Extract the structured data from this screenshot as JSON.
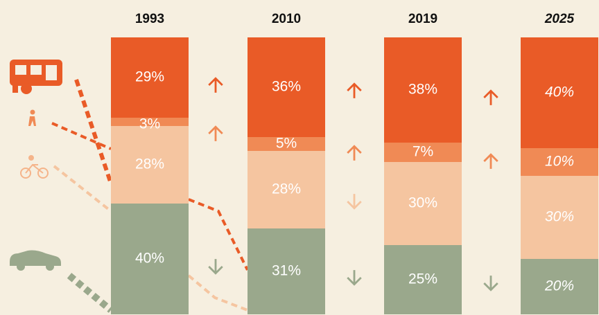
{
  "chart_data": {
    "type": "stacked_bar",
    "categories": [
      "1993",
      "2010",
      "2019",
      "2025"
    ],
    "series": [
      {
        "color": "#9aa88c",
        "values": [
          40,
          31,
          25,
          20
        ],
        "value_labels": [
          "40%",
          "31%",
          "25%",
          "20%"
        ]
      },
      {
        "color": "#f5c5a0",
        "values": [
          28,
          28,
          30,
          30
        ],
        "value_labels": [
          "28%",
          "28%",
          "30%",
          "30%"
        ]
      },
      {
        "color": "#f08a55",
        "values": [
          3,
          5,
          7,
          10
        ],
        "value_labels": [
          "3%",
          "5%",
          "7%",
          "10%"
        ]
      },
      {
        "color": "#e95b27",
        "values": [
          29,
          36,
          38,
          40
        ],
        "value_labels": [
          "29%",
          "36%",
          "38%",
          "40%"
        ]
      }
    ],
    "ylim": [
      0,
      100
    ]
  }
}
